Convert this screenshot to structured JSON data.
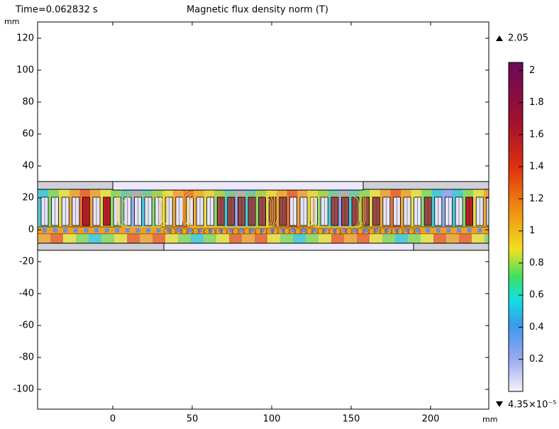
{
  "chart_data": {
    "type": "surface",
    "title": "Magnetic flux density norm (T)",
    "time_label": "Time=0.062832 s",
    "x_unit": "mm",
    "y_unit": "mm",
    "xlim": [
      -47.3,
      236.6
    ],
    "xticks": [
      0,
      50,
      100,
      150,
      200
    ],
    "ylim": [
      -112.4,
      130.2
    ],
    "yticks": [
      -100,
      -80,
      -60,
      -40,
      -20,
      0,
      20,
      40,
      60,
      80,
      100,
      120
    ],
    "colorbar": {
      "min": {
        "value": 4.35e-05,
        "label": "4.35×10⁻⁵"
      },
      "max": 2.05,
      "ticks": [
        0.2,
        0.4,
        0.6,
        0.8,
        1,
        1.2,
        1.4,
        1.6,
        1.8,
        2
      ]
    }
  }
}
